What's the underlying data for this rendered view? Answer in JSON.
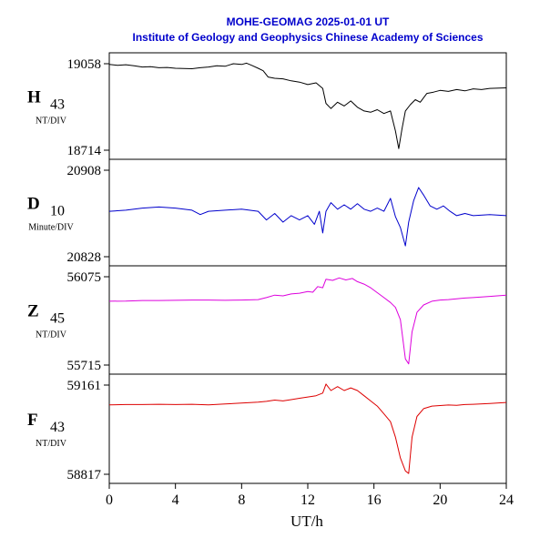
{
  "chart_data": {
    "type": "line",
    "title": "MOHE-GEOMAG  2025-01-01 UT",
    "subtitle": "Institute of Geology and Geophysics Chinese Academy of Sciences",
    "xlabel": "UT/h",
    "x_ticks": [
      "0",
      "4",
      "8",
      "12",
      "16",
      "20",
      "24"
    ],
    "xlim": [
      0,
      24
    ],
    "grid": false,
    "panels": [
      {
        "component": "H",
        "scale": "43",
        "unit": "NT/DIV",
        "ymax_label": "19058",
        "ymin_label": "18714",
        "ylim": [
          18714,
          19058
        ],
        "color": "#000000",
        "points": [
          [
            0,
            19055
          ],
          [
            0.5,
            19052
          ],
          [
            1,
            19054
          ],
          [
            1.5,
            19050
          ],
          [
            2,
            19045
          ],
          [
            2.5,
            19046
          ],
          [
            3,
            19042
          ],
          [
            3.5,
            19043
          ],
          [
            4,
            19040
          ],
          [
            4.5,
            19039
          ],
          [
            5,
            19038
          ],
          [
            5.5,
            19042
          ],
          [
            6,
            19045
          ],
          [
            6.5,
            19050
          ],
          [
            7,
            19048
          ],
          [
            7.5,
            19058
          ],
          [
            8,
            19055
          ],
          [
            8.3,
            19060
          ],
          [
            8.6,
            19052
          ],
          [
            9,
            19040
          ],
          [
            9.3,
            19030
          ],
          [
            9.6,
            19005
          ],
          [
            10,
            19000
          ],
          [
            10.5,
            18998
          ],
          [
            11,
            18990
          ],
          [
            11.5,
            18985
          ],
          [
            12,
            18975
          ],
          [
            12.5,
            18982
          ],
          [
            12.9,
            18960
          ],
          [
            13.1,
            18900
          ],
          [
            13.4,
            18880
          ],
          [
            13.8,
            18905
          ],
          [
            14.2,
            18890
          ],
          [
            14.6,
            18910
          ],
          [
            15,
            18885
          ],
          [
            15.4,
            18870
          ],
          [
            15.8,
            18865
          ],
          [
            16.2,
            18875
          ],
          [
            16.6,
            18860
          ],
          [
            17,
            18870
          ],
          [
            17.3,
            18790
          ],
          [
            17.5,
            18720
          ],
          [
            17.7,
            18800
          ],
          [
            17.9,
            18870
          ],
          [
            18.2,
            18895
          ],
          [
            18.5,
            18915
          ],
          [
            18.8,
            18905
          ],
          [
            19.2,
            18940
          ],
          [
            19.6,
            18945
          ],
          [
            20,
            18952
          ],
          [
            20.5,
            18948
          ],
          [
            21,
            18955
          ],
          [
            21.5,
            18950
          ],
          [
            22,
            18958
          ],
          [
            22.5,
            18955
          ],
          [
            23,
            18960
          ],
          [
            24,
            18962
          ]
        ]
      },
      {
        "component": "D",
        "scale": "10",
        "unit": "Minute/DIV",
        "ymax_label": "20908",
        "ymin_label": "20828",
        "ylim": [
          20828,
          20908
        ],
        "color": "#0000cc",
        "points": [
          [
            0,
            20870
          ],
          [
            1,
            20871
          ],
          [
            2,
            20873
          ],
          [
            3,
            20874
          ],
          [
            4,
            20873
          ],
          [
            5,
            20871
          ],
          [
            5.5,
            20867
          ],
          [
            6,
            20870
          ],
          [
            7,
            20871
          ],
          [
            8,
            20872
          ],
          [
            9,
            20870
          ],
          [
            9.5,
            20862
          ],
          [
            10,
            20868
          ],
          [
            10.5,
            20860
          ],
          [
            11,
            20866
          ],
          [
            11.5,
            20862
          ],
          [
            12,
            20866
          ],
          [
            12.4,
            20858
          ],
          [
            12.7,
            20870
          ],
          [
            12.9,
            20850
          ],
          [
            13.1,
            20870
          ],
          [
            13.4,
            20878
          ],
          [
            13.8,
            20872
          ],
          [
            14.2,
            20876
          ],
          [
            14.6,
            20872
          ],
          [
            15,
            20877
          ],
          [
            15.4,
            20872
          ],
          [
            15.8,
            20870
          ],
          [
            16.2,
            20873
          ],
          [
            16.6,
            20870
          ],
          [
            17,
            20882
          ],
          [
            17.3,
            20865
          ],
          [
            17.6,
            20855
          ],
          [
            17.9,
            20838
          ],
          [
            18.1,
            20860
          ],
          [
            18.4,
            20880
          ],
          [
            18.7,
            20892
          ],
          [
            19,
            20885
          ],
          [
            19.4,
            20875
          ],
          [
            19.8,
            20872
          ],
          [
            20.2,
            20875
          ],
          [
            20.6,
            20870
          ],
          [
            21,
            20866
          ],
          [
            21.5,
            20868
          ],
          [
            22,
            20866
          ],
          [
            23,
            20867
          ],
          [
            24,
            20866
          ]
        ]
      },
      {
        "component": "Z",
        "scale": "45",
        "unit": "NT/DIV",
        "ymax_label": "56075",
        "ymin_label": "55715",
        "ylim": [
          55715,
          56075
        ],
        "color": "#dd00dd",
        "points": [
          [
            0,
            55975
          ],
          [
            1,
            55976
          ],
          [
            2,
            55978
          ],
          [
            3,
            55978
          ],
          [
            4,
            55979
          ],
          [
            5,
            55980
          ],
          [
            6,
            55980
          ],
          [
            7,
            55979
          ],
          [
            8,
            55980
          ],
          [
            9,
            55982
          ],
          [
            9.5,
            55990
          ],
          [
            10,
            56000
          ],
          [
            10.5,
            55997
          ],
          [
            11,
            56005
          ],
          [
            11.5,
            56008
          ],
          [
            12,
            56015
          ],
          [
            12.3,
            56012
          ],
          [
            12.6,
            56035
          ],
          [
            12.9,
            56030
          ],
          [
            13.1,
            56065
          ],
          [
            13.5,
            56060
          ],
          [
            13.9,
            56070
          ],
          [
            14.3,
            56062
          ],
          [
            14.7,
            56068
          ],
          [
            15,
            56055
          ],
          [
            15.4,
            56045
          ],
          [
            15.8,
            56030
          ],
          [
            16.2,
            56010
          ],
          [
            16.6,
            55990
          ],
          [
            17,
            55970
          ],
          [
            17.3,
            55950
          ],
          [
            17.6,
            55900
          ],
          [
            17.9,
            55740
          ],
          [
            18.1,
            55720
          ],
          [
            18.3,
            55850
          ],
          [
            18.6,
            55930
          ],
          [
            19,
            55960
          ],
          [
            19.5,
            55975
          ],
          [
            20,
            55980
          ],
          [
            20.5,
            55982
          ],
          [
            21,
            55985
          ],
          [
            21.5,
            55988
          ],
          [
            22,
            55990
          ],
          [
            23,
            55995
          ],
          [
            24,
            56000
          ]
        ]
      },
      {
        "component": "F",
        "scale": "43",
        "unit": "NT/DIV",
        "ymax_label": "59161",
        "ymin_label": "58817",
        "ylim": [
          58817,
          59161
        ],
        "color": "#dd0000",
        "points": [
          [
            0,
            59085
          ],
          [
            1,
            59086
          ],
          [
            2,
            59086
          ],
          [
            3,
            59087
          ],
          [
            4,
            59086
          ],
          [
            5,
            59087
          ],
          [
            6,
            59085
          ],
          [
            7,
            59088
          ],
          [
            8,
            59092
          ],
          [
            9,
            59095
          ],
          [
            9.5,
            59098
          ],
          [
            10,
            59103
          ],
          [
            10.5,
            59100
          ],
          [
            11,
            59105
          ],
          [
            11.5,
            59110
          ],
          [
            12,
            59115
          ],
          [
            12.5,
            59120
          ],
          [
            12.9,
            59130
          ],
          [
            13.1,
            59165
          ],
          [
            13.4,
            59140
          ],
          [
            13.8,
            59155
          ],
          [
            14.2,
            59140
          ],
          [
            14.6,
            59150
          ],
          [
            15,
            59140
          ],
          [
            15.4,
            59120
          ],
          [
            15.8,
            59100
          ],
          [
            16.2,
            59080
          ],
          [
            16.6,
            59050
          ],
          [
            17,
            59020
          ],
          [
            17.3,
            58960
          ],
          [
            17.6,
            58880
          ],
          [
            17.9,
            58830
          ],
          [
            18.1,
            58820
          ],
          [
            18.3,
            58960
          ],
          [
            18.6,
            59040
          ],
          [
            19,
            59070
          ],
          [
            19.5,
            59080
          ],
          [
            20,
            59082
          ],
          [
            20.5,
            59084
          ],
          [
            21,
            59083
          ],
          [
            21.5,
            59086
          ],
          [
            22,
            59087
          ],
          [
            23,
            59090
          ],
          [
            24,
            59094
          ]
        ]
      }
    ]
  }
}
